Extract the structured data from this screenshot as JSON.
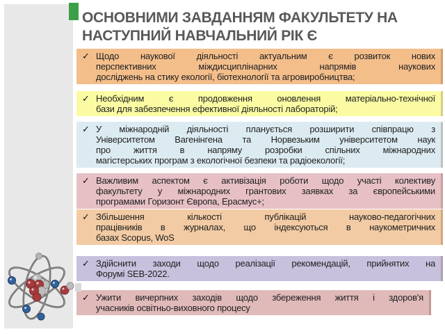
{
  "slide": {
    "title_lines": [
      "ОСНОВНИМИ ЗАВДАННЯМ ФАКУЛЬТЕТУ НА",
      "НАСТУПНИЙ НАВЧАЛЬНИЙ РІК Є"
    ],
    "bullet_char": "✓",
    "items": [
      {
        "bg": "#f4be8b",
        "lines": [
          "Щодо наукової діяльності актуальним є розвиток нових",
          "перспективних міждисциплінарних напрямів наукових",
          "досліджень на стику екології, біотехнології та агровиробництва;"
        ]
      },
      {
        "bg": "#fbfba3",
        "lines": [
          "Необхідним є продовження оновлення матеріально-технічної",
          "бази для забезпечення ефективної діяльності лабораторій;"
        ]
      },
      {
        "bg": "#dcebf1",
        "lines": [
          "У міжнародній діяльності планується розширити співпрацю з",
          "Університетом Вагенінгена та Норвезьким університетом наук",
          "про життя в напряму розробки спільних міжнародних",
          "магістерських програм з екологічної безпеки та радіоекології;"
        ]
      },
      {
        "bg": "#e6c0c5",
        "lines": [
          "Важливим аспектом є активізація роботи щодо участі колективу",
          "факультету у міжнародних грантових заявках за європейськими",
          "програмами Горизонт Європа, Ерасмус+;"
        ]
      },
      {
        "bg": "#f2cba4",
        "lines": [
          "Збільшення кількості публікацій науково-педагогічних",
          "працівників в журналах, що індексуються в наукометричних",
          "базах Scopus, WoS"
        ]
      },
      {
        "bg": "#c7c1dd",
        "lines": [
          "Здійснити заходи щодо реалізації рекомендацій, прийнятих на",
          "Форумі SEB-2022."
        ]
      },
      {
        "bg": "#e0b9b9",
        "lines": [
          "Ужити вичерпних заходів щодо збереження життя і здоров'я",
          "учасників освітньо-виховного процесу"
        ]
      }
    ],
    "colors": {
      "sidebar_bg": "#e8e8e8",
      "title_text": "#58595b",
      "body_text": "#1f1f1f",
      "accent_green": "#3c9f47",
      "orbit_gray": "#4e4e4e",
      "electron_blue": "#31639e",
      "nucleus_red": "#a53b3d",
      "nucleus_gray": "#bdbdbd"
    },
    "decor": {
      "atom_icon": "atom-with-orbits-nucleus-and-electrons"
    }
  }
}
